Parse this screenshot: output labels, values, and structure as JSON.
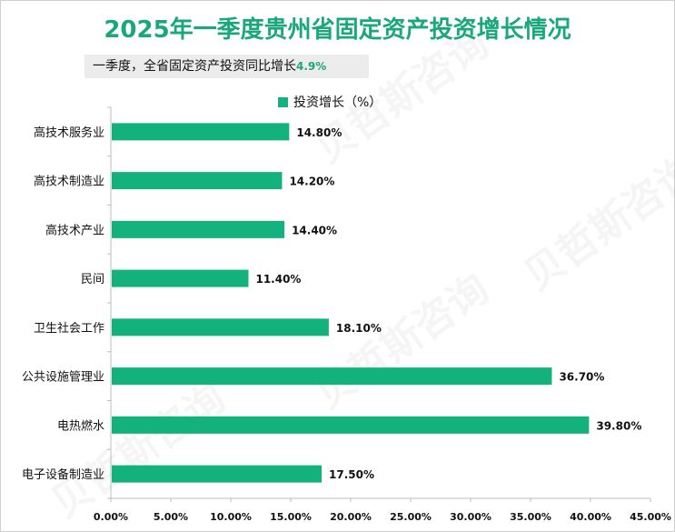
{
  "title": "2025年一季度贵州省固定资产投资增长情况",
  "subtitle": {
    "text": "一季度，全省固定资产投资同比增长",
    "highlight": "4.9%"
  },
  "watermark": "贝哲斯咨询",
  "colors": {
    "bar": "#13b27d",
    "title": "#1aa878"
  },
  "chart_data": {
    "type": "bar",
    "orientation": "horizontal",
    "categories": [
      "高技术服务业",
      "高技术制造业",
      "高技术产业",
      "民间",
      "卫生社会工作",
      "公共设施管理业",
      "电热燃水",
      "电子设备制造业"
    ],
    "series": [
      {
        "name": "投资增长（%）",
        "values": [
          14.8,
          14.2,
          14.4,
          11.4,
          18.1,
          36.7,
          39.8,
          17.5
        ],
        "labels": [
          "14.80%",
          "14.20%",
          "14.40%",
          "11.40%",
          "18.10%",
          "36.70%",
          "39.80%",
          "17.50%"
        ]
      }
    ],
    "xlim": [
      0,
      45
    ],
    "xticks": [
      0,
      5,
      10,
      15,
      20,
      25,
      30,
      35,
      40,
      45
    ],
    "xtick_labels": [
      "0.00%",
      "5.00%",
      "10.00%",
      "15.00%",
      "20.00%",
      "25.00%",
      "30.00%",
      "35.00%",
      "40.00%",
      "45.00%"
    ],
    "legend_position": "top",
    "grid": false
  }
}
